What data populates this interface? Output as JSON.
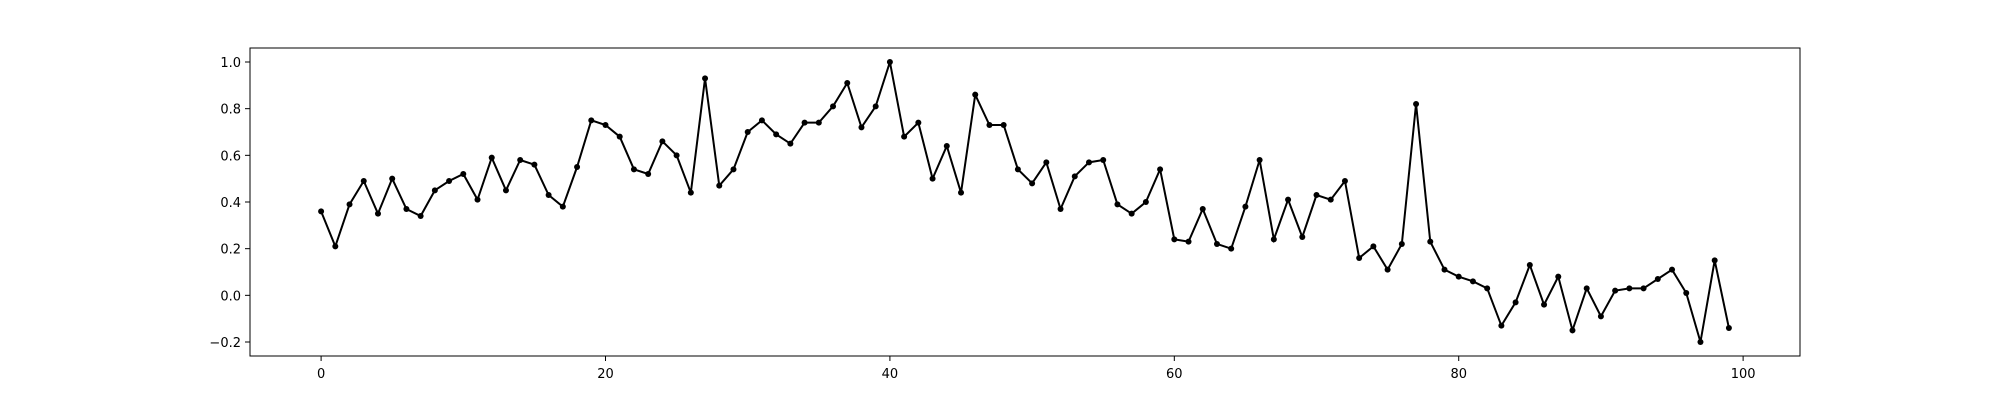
{
  "chart_data": {
    "type": "line",
    "title": "",
    "xlabel": "",
    "ylabel": "",
    "xlim": [
      -5,
      104
    ],
    "ylim": [
      -0.26,
      1.06
    ],
    "grid": false,
    "x_ticks": [
      0,
      20,
      40,
      60,
      80,
      100
    ],
    "y_ticks": [
      -0.2,
      0.0,
      0.2,
      0.4,
      0.6,
      0.8,
      1.0
    ],
    "x_tick_labels": [
      "0",
      "20",
      "40",
      "60",
      "80",
      "100"
    ],
    "y_tick_labels": [
      "−0.2",
      "0.0",
      "0.2",
      "0.4",
      "0.6",
      "0.8",
      "1.0"
    ],
    "series": [
      {
        "color": "#000000",
        "marker": "dot",
        "x": [
          0,
          1,
          2,
          3,
          4,
          5,
          6,
          7,
          8,
          9,
          10,
          11,
          12,
          13,
          14,
          15,
          16,
          17,
          18,
          19,
          20,
          21,
          22,
          23,
          24,
          25,
          26,
          27,
          28,
          29,
          30,
          31,
          32,
          33,
          34,
          35,
          36,
          37,
          38,
          39,
          40,
          41,
          42,
          43,
          44,
          45,
          46,
          47,
          48,
          49,
          50,
          51,
          52,
          53,
          54,
          55,
          56,
          57,
          58,
          59,
          60,
          61,
          62,
          63,
          64,
          65,
          66,
          67,
          68,
          69,
          70,
          71,
          72,
          73,
          74,
          75,
          76,
          77,
          78,
          79,
          80,
          81,
          82,
          83,
          84,
          85,
          86,
          87,
          88,
          89,
          90,
          91,
          92,
          93,
          94,
          95,
          96,
          97,
          98,
          99
        ],
        "values": [
          0.36,
          0.21,
          0.39,
          0.49,
          0.35,
          0.5,
          0.37,
          0.34,
          0.45,
          0.49,
          0.52,
          0.41,
          0.59,
          0.45,
          0.58,
          0.56,
          0.43,
          0.38,
          0.55,
          0.75,
          0.73,
          0.68,
          0.54,
          0.52,
          0.66,
          0.6,
          0.44,
          0.93,
          0.47,
          0.54,
          0.7,
          0.75,
          0.69,
          0.65,
          0.74,
          0.74,
          0.81,
          0.91,
          0.72,
          0.81,
          1.0,
          0.68,
          0.74,
          0.5,
          0.64,
          0.44,
          0.86,
          0.73,
          0.73,
          0.54,
          0.48,
          0.57,
          0.37,
          0.51,
          0.57,
          0.58,
          0.39,
          0.35,
          0.4,
          0.54,
          0.24,
          0.23,
          0.37,
          0.22,
          0.2,
          0.38,
          0.58,
          0.24,
          0.41,
          0.25,
          0.43,
          0.41,
          0.49,
          0.16,
          0.21,
          0.11,
          0.22,
          0.82,
          0.23,
          0.11,
          0.08,
          0.06,
          0.03,
          -0.13,
          -0.03,
          0.13,
          -0.04,
          0.08,
          -0.15,
          0.03,
          -0.09,
          0.02,
          0.03,
          0.03,
          0.07,
          0.11,
          0.01,
          -0.2,
          0.15,
          -0.14
        ]
      }
    ]
  }
}
